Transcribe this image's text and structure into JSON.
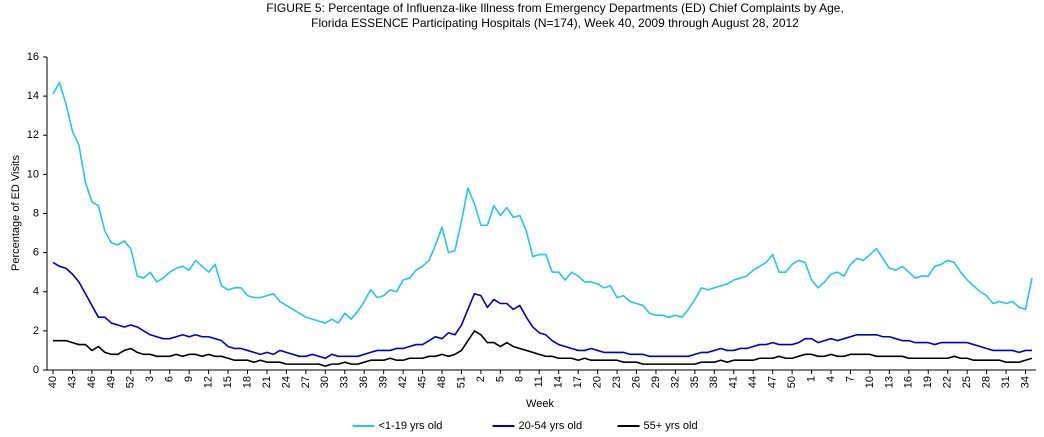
{
  "chart_data": {
    "type": "line",
    "title": [
      "FIGURE 5: Percentage of Influenza-like Illness from Emergency Departments (ED) Chief Complaints by Age,",
      "Florida ESSENCE Participating Hospitals (N=174), Week 40, 2009 through August  28, 2012"
    ],
    "x_label": "Week",
    "y_label": "Percentage of ED Visits",
    "ylim": [
      0,
      16
    ],
    "yticks": [
      0,
      2,
      4,
      6,
      8,
      10,
      12,
      14,
      16
    ],
    "grid": false,
    "legend": "bottom",
    "categories": [
      "40",
      null,
      null,
      "43",
      null,
      null,
      "46",
      null,
      null,
      "49",
      null,
      null,
      "52",
      null,
      null,
      "3",
      null,
      null,
      "6",
      null,
      null,
      "9",
      null,
      null,
      "12",
      null,
      null,
      "15",
      null,
      null,
      "18",
      null,
      null,
      "21",
      null,
      null,
      "24",
      null,
      null,
      "27",
      null,
      null,
      "30",
      null,
      null,
      "33",
      null,
      null,
      "36",
      null,
      null,
      "39",
      null,
      null,
      "42",
      null,
      null,
      "45",
      null,
      null,
      "48",
      null,
      null,
      "51",
      null,
      null,
      "2",
      null,
      null,
      "5",
      null,
      null,
      "8",
      null,
      null,
      "11",
      null,
      null,
      "14",
      null,
      null,
      "17",
      null,
      null,
      "20",
      null,
      null,
      "23",
      null,
      null,
      "26",
      null,
      null,
      "29",
      null,
      null,
      "32",
      null,
      null,
      "35",
      null,
      null,
      "38",
      null,
      null,
      "41",
      null,
      null,
      "44",
      null,
      null,
      "47",
      null,
      null,
      "50",
      null,
      null,
      "1",
      null,
      null,
      "4",
      null,
      null,
      "7",
      null,
      null,
      "10",
      null,
      null,
      "13",
      null,
      null,
      "16",
      null,
      null,
      "19",
      null,
      null,
      "22",
      null,
      null,
      "25",
      null,
      null,
      "28",
      null,
      null,
      "31",
      null,
      null,
      "34",
      null
    ],
    "series": [
      {
        "name": "<1-19 yrs old",
        "color": "#22c6f0",
        "values": [
          14.1,
          14.7,
          13.6,
          12.2,
          11.5,
          9.6,
          8.6,
          8.4,
          7.1,
          6.5,
          6.4,
          6.6,
          6.2,
          4.8,
          4.7,
          5.0,
          4.5,
          4.7,
          5.0,
          5.2,
          5.3,
          5.1,
          5.6,
          5.3,
          5.0,
          5.4,
          4.3,
          4.1,
          4.2,
          4.2,
          3.8,
          3.7,
          3.7,
          3.8,
          3.9,
          3.5,
          3.3,
          3.1,
          2.9,
          2.7,
          2.6,
          2.5,
          2.4,
          2.6,
          2.4,
          2.9,
          2.6,
          3.0,
          3.5,
          4.1,
          3.7,
          3.8,
          4.1,
          4.0,
          4.6,
          4.7,
          5.1,
          5.3,
          5.6,
          6.4,
          7.3,
          6.0,
          6.1,
          7.6,
          9.3,
          8.5,
          7.4,
          7.4,
          8.4,
          7.9,
          8.3,
          7.8,
          7.9,
          7.1,
          5.8,
          5.9,
          5.9,
          5.0,
          5.0,
          4.6,
          5.0,
          4.8,
          4.5,
          4.5,
          4.4,
          4.2,
          4.3,
          3.7,
          3.8,
          3.5,
          3.4,
          3.3,
          2.9,
          2.8,
          2.8,
          2.7,
          2.8,
          2.7,
          3.1,
          3.6,
          4.2,
          4.1,
          4.2,
          4.3,
          4.4,
          4.6,
          4.7,
          4.8,
          5.1,
          5.3,
          5.5,
          5.9,
          5.0,
          5.0,
          5.4,
          5.6,
          5.5,
          4.6,
          4.2,
          4.5,
          4.9,
          5.0,
          4.8,
          5.4,
          5.7,
          5.6,
          5.9,
          6.2,
          5.7,
          5.2,
          5.1,
          5.3,
          5.0,
          4.7,
          4.8,
          4.8,
          5.3,
          5.4,
          5.6,
          5.5,
          5.0,
          4.6,
          4.3,
          4.0,
          3.8,
          3.4,
          3.5,
          3.4,
          3.5,
          3.2,
          3.1,
          4.7
        ]
      },
      {
        "name": "20-54 yrs old",
        "color": "#0000cc",
        "values": [
          5.5,
          5.3,
          5.2,
          4.9,
          4.5,
          3.9,
          3.3,
          2.7,
          2.7,
          2.4,
          2.3,
          2.2,
          2.3,
          2.2,
          2.0,
          1.8,
          1.7,
          1.6,
          1.6,
          1.7,
          1.8,
          1.7,
          1.8,
          1.7,
          1.7,
          1.6,
          1.5,
          1.2,
          1.1,
          1.1,
          1.0,
          0.9,
          0.8,
          0.9,
          0.8,
          1.0,
          0.9,
          0.8,
          0.7,
          0.7,
          0.8,
          0.7,
          0.6,
          0.8,
          0.7,
          0.7,
          0.7,
          0.7,
          0.8,
          0.9,
          1.0,
          1.0,
          1.0,
          1.1,
          1.1,
          1.2,
          1.3,
          1.3,
          1.5,
          1.7,
          1.6,
          1.9,
          1.8,
          2.3,
          3.1,
          3.9,
          3.8,
          3.2,
          3.6,
          3.4,
          3.4,
          3.1,
          3.3,
          2.7,
          2.2,
          1.9,
          1.8,
          1.5,
          1.3,
          1.2,
          1.1,
          1.0,
          1.0,
          1.1,
          1.0,
          0.9,
          0.9,
          0.9,
          0.9,
          0.8,
          0.8,
          0.8,
          0.7,
          0.7,
          0.7,
          0.7,
          0.7,
          0.7,
          0.7,
          0.8,
          0.9,
          0.9,
          1.0,
          1.1,
          1.0,
          1.0,
          1.1,
          1.1,
          1.2,
          1.3,
          1.3,
          1.4,
          1.3,
          1.3,
          1.3,
          1.4,
          1.6,
          1.6,
          1.4,
          1.5,
          1.6,
          1.5,
          1.6,
          1.7,
          1.8,
          1.8,
          1.8,
          1.8,
          1.7,
          1.7,
          1.6,
          1.5,
          1.5,
          1.4,
          1.4,
          1.4,
          1.3,
          1.4,
          1.4,
          1.4,
          1.4,
          1.4,
          1.3,
          1.2,
          1.1,
          1.0,
          1.0,
          1.0,
          1.0,
          0.9,
          1.0,
          1.0
        ]
      },
      {
        "name": "55+ yrs old",
        "color": "#000000",
        "values": [
          1.5,
          1.5,
          1.5,
          1.4,
          1.3,
          1.3,
          1.0,
          1.2,
          0.9,
          0.8,
          0.8,
          1.0,
          1.1,
          0.9,
          0.8,
          0.8,
          0.7,
          0.7,
          0.7,
          0.8,
          0.7,
          0.8,
          0.8,
          0.7,
          0.8,
          0.7,
          0.7,
          0.6,
          0.5,
          0.5,
          0.5,
          0.4,
          0.5,
          0.4,
          0.4,
          0.4,
          0.3,
          0.3,
          0.3,
          0.3,
          0.3,
          0.3,
          0.2,
          0.3,
          0.3,
          0.4,
          0.3,
          0.3,
          0.4,
          0.5,
          0.5,
          0.5,
          0.6,
          0.5,
          0.5,
          0.6,
          0.6,
          0.6,
          0.7,
          0.7,
          0.8,
          0.7,
          0.8,
          1.0,
          1.5,
          2.0,
          1.8,
          1.4,
          1.4,
          1.2,
          1.4,
          1.2,
          1.1,
          1.0,
          0.9,
          0.8,
          0.7,
          0.7,
          0.6,
          0.6,
          0.6,
          0.5,
          0.6,
          0.5,
          0.5,
          0.5,
          0.5,
          0.5,
          0.4,
          0.4,
          0.4,
          0.3,
          0.3,
          0.3,
          0.3,
          0.3,
          0.3,
          0.3,
          0.3,
          0.3,
          0.4,
          0.4,
          0.4,
          0.5,
          0.4,
          0.5,
          0.5,
          0.5,
          0.5,
          0.6,
          0.6,
          0.6,
          0.7,
          0.6,
          0.6,
          0.7,
          0.8,
          0.8,
          0.7,
          0.7,
          0.8,
          0.7,
          0.7,
          0.8,
          0.8,
          0.8,
          0.8,
          0.7,
          0.7,
          0.7,
          0.7,
          0.7,
          0.6,
          0.6,
          0.6,
          0.6,
          0.6,
          0.6,
          0.6,
          0.7,
          0.6,
          0.6,
          0.5,
          0.5,
          0.5,
          0.5,
          0.5,
          0.4,
          0.4,
          0.4,
          0.5,
          0.6
        ]
      }
    ]
  }
}
